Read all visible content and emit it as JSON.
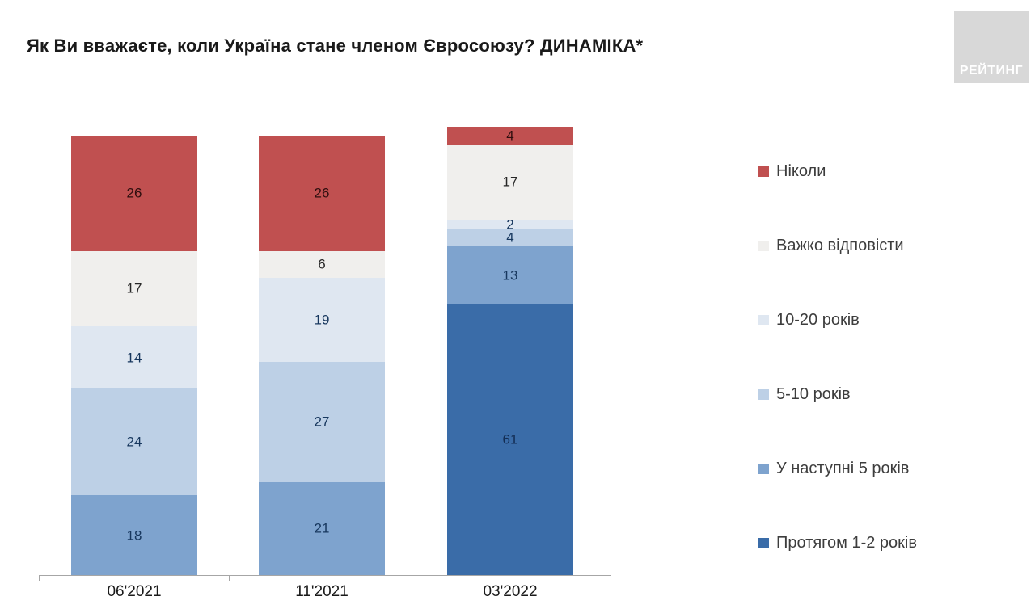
{
  "title": "Як Ви вважаєте, коли Україна стане членом Євросоюзу? ДИНАМІКА*",
  "logo": {
    "text": "РЕЙТИНГ",
    "bg_color": "#d8d8d8",
    "text_color": "#ffffff"
  },
  "chart_data": {
    "type": "bar",
    "stacked": true,
    "orientation": "vertical",
    "title": "Як Ви вважаєте, коли Україна стане членом Євросоюзу? ДИНАМІКА*",
    "categories": [
      "06'2021",
      "11'2021",
      "03'2022"
    ],
    "series": [
      {
        "name": "Протягом 1-2 років",
        "color": "#3a6ca8",
        "label_color": "#122c52",
        "values": [
          0,
          0,
          61
        ]
      },
      {
        "name": "У наступні 5 років",
        "color": "#7ea3ce",
        "label_color": "#17375e",
        "values": [
          18,
          21,
          13
        ]
      },
      {
        "name": "5-10 років",
        "color": "#bdd0e6",
        "label_color": "#17375e",
        "values": [
          24,
          27,
          4
        ]
      },
      {
        "name": "10-20 років",
        "color": "#dfe7f1",
        "label_color": "#17375e",
        "values": [
          14,
          19,
          2
        ]
      },
      {
        "name": "Важко відповісти",
        "color": "#f0efed",
        "label_color": "#262626",
        "values": [
          17,
          6,
          17
        ]
      },
      {
        "name": "Ніколи",
        "color": "#c05050",
        "label_color": "#2e0e0e",
        "values": [
          26,
          26,
          4
        ]
      }
    ],
    "legend_position": "right",
    "legend_order_top_to_bottom": [
      "Ніколи",
      "Важко відповісти",
      "10-20 років",
      "5-10 років",
      "У наступні 5 років",
      "Протягом 1-2 років"
    ],
    "value_axis_max": 101,
    "grid": false,
    "bar_value_labels_shown": true
  }
}
